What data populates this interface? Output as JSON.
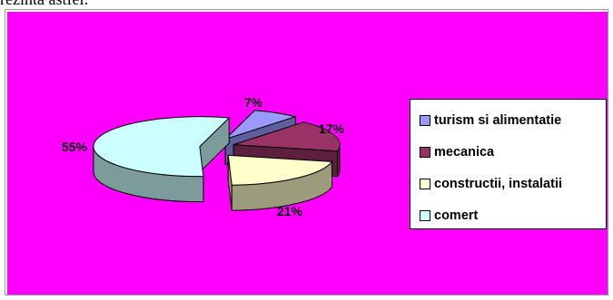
{
  "document": {
    "top_text": "rezinta astfel:"
  },
  "chart_data": {
    "type": "pie",
    "title": "",
    "background": "#ff00ff",
    "legend_position": "right",
    "slices": [
      {
        "label": "turism si alimentatie",
        "value": 7,
        "display": "7%",
        "color": "#9999ff",
        "side_color": "#5e5e9c"
      },
      {
        "label": "mecanica",
        "value": 17,
        "display": "17%",
        "color": "#993366",
        "side_color": "#5c1f3d"
      },
      {
        "label": "constructii, instalatii",
        "value": 21,
        "display": "21%",
        "color": "#ffffcc",
        "side_color": "#9c9c7c"
      },
      {
        "label": "comert",
        "value": 55,
        "display": "55%",
        "color": "#ccffff",
        "side_color": "#7c9c9c"
      }
    ]
  }
}
